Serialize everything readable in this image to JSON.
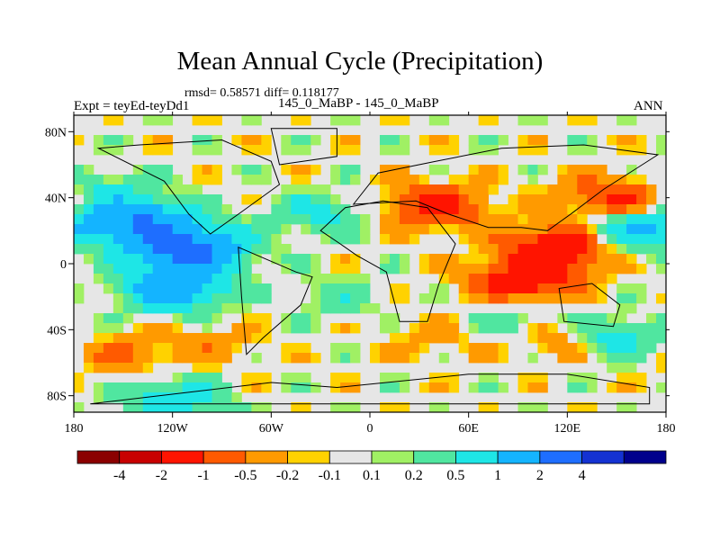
{
  "chart_data": {
    "type": "heatmap",
    "title": "Mean Annual Cycle (Precipitation)",
    "stats_text": "rmsd= 0.58571 diff= 0.118177",
    "left_label": "Expt = teyEd-teyDd1",
    "center_label": "145_0_MaBP - 145_0_MaBP",
    "right_label": "ANN",
    "x_ticks": [
      "180",
      "120W",
      "60W",
      "0",
      "60E",
      "120E",
      "180"
    ],
    "x_tick_values": [
      -180,
      -120,
      -60,
      0,
      60,
      120,
      180
    ],
    "y_ticks": [
      "80N",
      "40N",
      "0",
      "40S",
      "80S"
    ],
    "y_tick_values": [
      80,
      40,
      0,
      -40,
      -80
    ],
    "xlim": [
      -180,
      180
    ],
    "ylim": [
      -90,
      90
    ],
    "colorbar_labels": [
      "-4",
      "-2",
      "-1",
      "-0.5",
      "-0.2",
      "-0.1",
      "0.1",
      "0.2",
      "0.5",
      "1",
      "2",
      "4"
    ],
    "colorbar_colors": [
      "#8b0000",
      "#c80000",
      "#ff1400",
      "#ff5a00",
      "#ff9a00",
      "#ffd200",
      "#e6e6e6",
      "#a0f064",
      "#50e6a0",
      "#1ee6e6",
      "#14b4ff",
      "#1e6eff",
      "#1432d2",
      "#00008c"
    ],
    "field_regions": [
      {
        "lon": -140,
        "lat": 25,
        "value": 2
      },
      {
        "lon": -110,
        "lat": 8,
        "value": 2.5
      },
      {
        "lon": -120,
        "lat": -15,
        "value": 1.5
      },
      {
        "lon": -150,
        "lat": -55,
        "value": -0.5
      },
      {
        "lon": -95,
        "lat": -50,
        "value": -0.3
      },
      {
        "lon": -165,
        "lat": 45,
        "value": 0.5
      },
      {
        "lon": -30,
        "lat": 30,
        "value": 0.6
      },
      {
        "lon": -20,
        "lat": -20,
        "value": 0.3
      },
      {
        "lon": 40,
        "lat": 35,
        "value": -1.2
      },
      {
        "lon": 95,
        "lat": -10,
        "value": -1.5
      },
      {
        "lon": 115,
        "lat": 10,
        "value": -1.6
      },
      {
        "lon": 150,
        "lat": 40,
        "value": -1.1
      },
      {
        "lon": 160,
        "lat": 20,
        "value": 1.1
      },
      {
        "lon": 125,
        "lat": -45,
        "value": -1.3
      },
      {
        "lon": 140,
        "lat": -45,
        "value": 1.5
      },
      {
        "lon": 40,
        "lat": -45,
        "value": -0.3
      },
      {
        "lon": -120,
        "lat": -82,
        "value": 0.8
      },
      {
        "lon": 90,
        "lat": -35,
        "value": 0.5
      }
    ]
  }
}
